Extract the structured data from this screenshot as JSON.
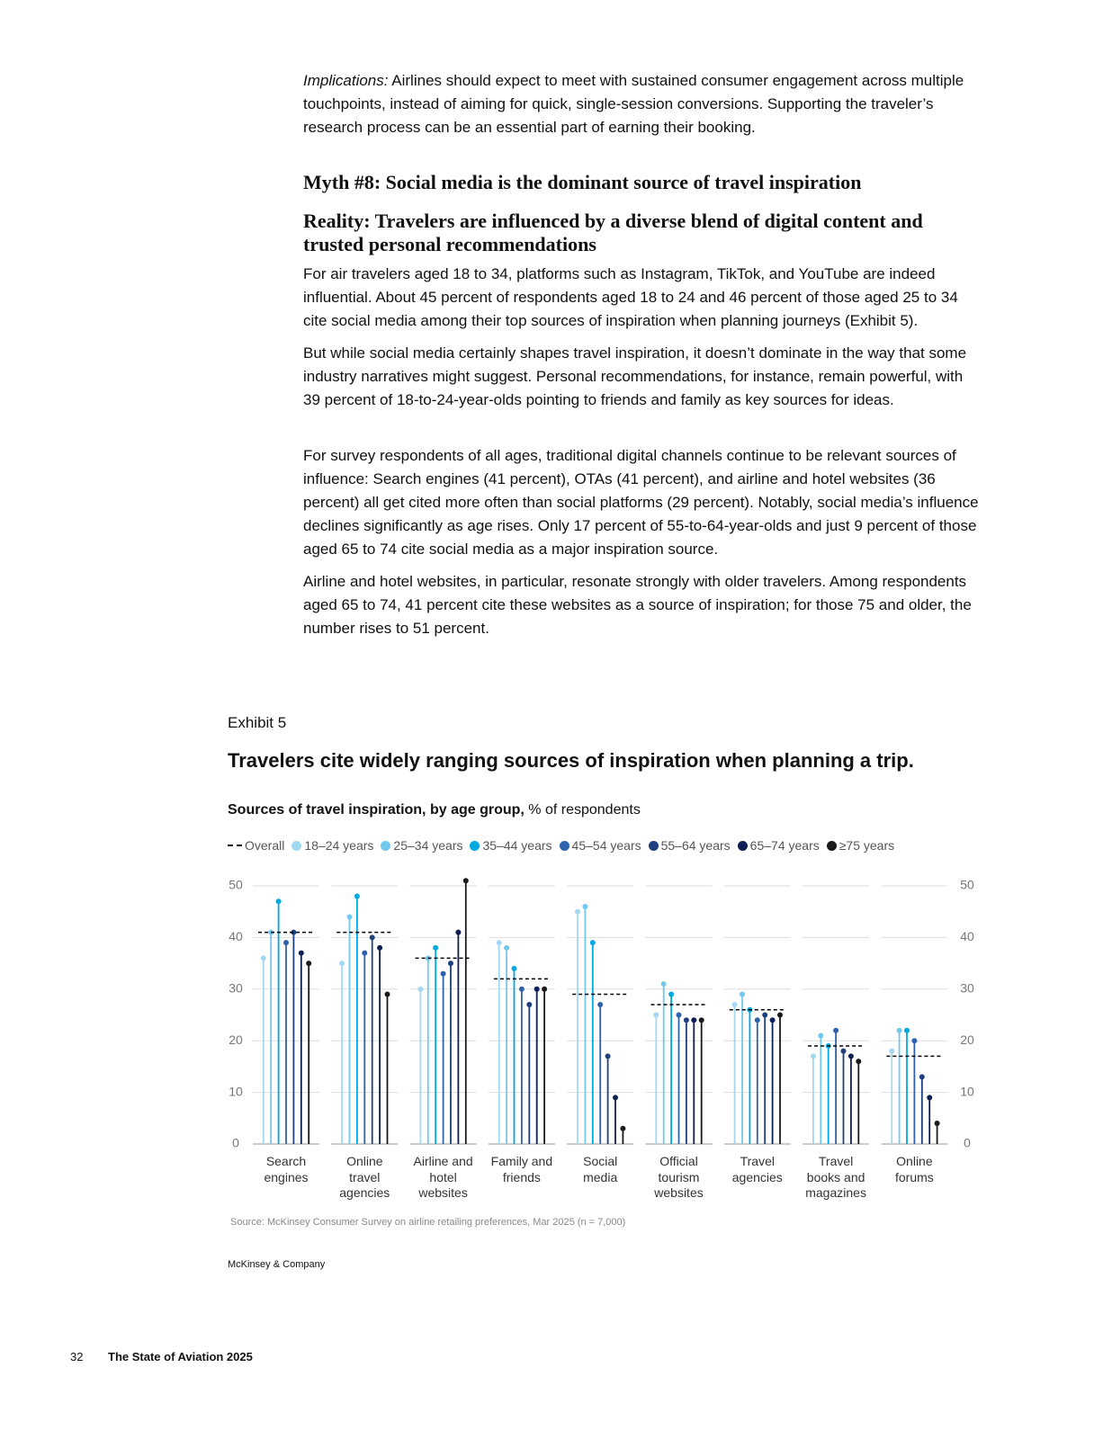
{
  "body": {
    "implications_label": "Implications:",
    "implications_text": "Airlines should expect to meet with sustained consumer engagement across multiple touchpoints, instead of aiming for quick, single-session conversions. Supporting the traveler’s research process can be an essential part of earning their booking.",
    "myth": "Myth #8: Social media is the dominant source of travel inspiration",
    "reality": "Reality: Travelers are influenced by a diverse blend of digital content and trusted personal recommendations",
    "paragraphs": [
      "For air travelers aged 18 to 34, platforms such as Instagram, TikTok, and YouTube are indeed influential. About 45 percent of respondents aged 18 to 24 and 46 percent of those aged 25 to 34 cite social media among their top sources of inspiration when planning journeys (Exhibit 5).",
      "But while social media certainly shapes travel inspiration, it doesn’t dominate in the way that some industry narratives might suggest. Personal recommendations, for instance, remain powerful, with 39 percent of 18-to-24-year-olds pointing to friends and family as key sources for ideas.",
      "For survey respondents of all ages, traditional digital channels continue to be relevant sources of influence: Search engines (41 percent), OTAs (41 percent), and airline and hotel websites (36 percent) all get cited more often than social platforms (29 percent). Notably, social media’s influence declines significantly as age rises. Only 17 percent of 55-to-64-year-olds and just 9 percent of those aged 65 to 74 cite social media as a major inspiration source.",
      "Airline and hotel websites, in particular, resonate strongly with older travelers. Among respondents aged 65 to 74, 41 percent cite these websites as a source of inspiration; for those 75 and older, the number rises to 51 percent."
    ]
  },
  "exhibit": {
    "label": "Exhibit 5",
    "source": "Source: McKinsey Consumer Survey on airline retailing preferences, Mar 2025 (n = 7,000)",
    "brand": "McKinsey & Company"
  },
  "chart_data": {
    "type": "lollipop",
    "title": "Travelers cite widely ranging sources of inspiration when planning a trip.",
    "subtitle": "Sources of travel inspiration, by age group,",
    "subtitle_unit": "% of respondents",
    "categories": [
      "Search engines",
      "Online travel agencies",
      "Airline and hotel websites",
      "Family and friends",
      "Social media",
      "Official tourism websites",
      "Travel agencies",
      "Travel books and magazines",
      "Online forums"
    ],
    "ylim": [
      0,
      50
    ],
    "yticks": [
      0,
      10,
      20,
      30,
      40,
      50
    ],
    "grid": true,
    "overall": {
      "name": "Overall",
      "color": "#000000",
      "style": "dashed",
      "values": [
        41,
        41,
        36,
        32,
        29,
        27,
        26,
        19,
        17
      ]
    },
    "series": [
      {
        "name": "18–24 years",
        "color": "#a3d8f2",
        "values": [
          36,
          35,
          30,
          39,
          45,
          25,
          27,
          17,
          18
        ]
      },
      {
        "name": "25–34 years",
        "color": "#72c8ee",
        "values": [
          41,
          44,
          36,
          38,
          46,
          31,
          29,
          21,
          22
        ]
      },
      {
        "name": "35–44 years",
        "color": "#00a9e0",
        "values": [
          47,
          48,
          38,
          34,
          39,
          29,
          26,
          19,
          22
        ]
      },
      {
        "name": "45–54 years",
        "color": "#2f62ad",
        "values": [
          39,
          37,
          33,
          30,
          27,
          25,
          24,
          22,
          20
        ]
      },
      {
        "name": "55–64 years",
        "color": "#1f3f7e",
        "values": [
          41,
          40,
          35,
          27,
          17,
          24,
          25,
          18,
          13
        ]
      },
      {
        "name": "65–74 years",
        "color": "#0d1f55",
        "values": [
          37,
          38,
          41,
          30,
          9,
          24,
          24,
          17,
          9
        ]
      },
      {
        "name": "≥75 years",
        "color": "#1a1a1a",
        "values": [
          35,
          29,
          51,
          30,
          3,
          24,
          25,
          16,
          4
        ]
      }
    ]
  },
  "footer": {
    "page": "32",
    "publication": "The State of Aviation 2025"
  }
}
